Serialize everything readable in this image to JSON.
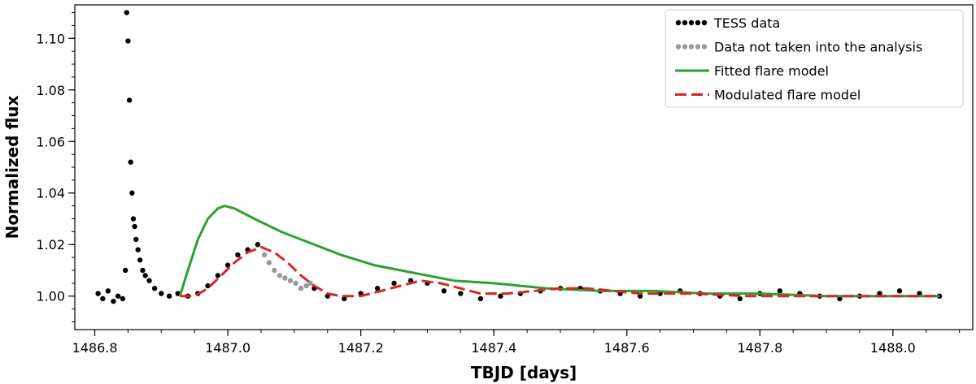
{
  "chart_data": {
    "type": "scatter",
    "title": "",
    "xlabel": "TBJD [days]",
    "ylabel": "Normalized flux",
    "xlim": [
      1486.77,
      1488.12
    ],
    "ylim": [
      0.987,
      1.113
    ],
    "xticks": [
      1486.8,
      1487.0,
      1487.2,
      1487.4,
      1487.6,
      1487.8,
      1488.0
    ],
    "xtick_labels": [
      "1486.8",
      "1487.0",
      "1487.2",
      "1487.4",
      "1487.6",
      "1487.8",
      "1488.0"
    ],
    "yticks": [
      1.0,
      1.02,
      1.04,
      1.06,
      1.08,
      1.1
    ],
    "ytick_labels": [
      "1.00",
      "1.02",
      "1.04",
      "1.06",
      "1.08",
      "1.10"
    ],
    "grid": false,
    "legend_position": "top-right",
    "series": [
      {
        "name": "TESS data",
        "kind": "scatter",
        "color": "#000000",
        "points": [
          [
            1486.805,
            1.001
          ],
          [
            1486.812,
            0.999
          ],
          [
            1486.82,
            1.002
          ],
          [
            1486.828,
            0.998
          ],
          [
            1486.835,
            1.0
          ],
          [
            1486.842,
            0.999
          ],
          [
            1486.846,
            1.01
          ],
          [
            1486.848,
            1.11
          ],
          [
            1486.85,
            1.099
          ],
          [
            1486.852,
            1.076
          ],
          [
            1486.854,
            1.052
          ],
          [
            1486.856,
            1.04
          ],
          [
            1486.858,
            1.03
          ],
          [
            1486.86,
            1.027
          ],
          [
            1486.862,
            1.022
          ],
          [
            1486.865,
            1.018
          ],
          [
            1486.868,
            1.014
          ],
          [
            1486.872,
            1.01
          ],
          [
            1486.876,
            1.008
          ],
          [
            1486.882,
            1.006
          ],
          [
            1486.89,
            1.003
          ],
          [
            1486.9,
            1.001
          ],
          [
            1486.912,
            1.0
          ],
          [
            1486.925,
            1.001
          ],
          [
            1486.94,
            1.0
          ],
          [
            1486.955,
            1.001
          ],
          [
            1486.97,
            1.004
          ],
          [
            1486.985,
            1.008
          ],
          [
            1487.0,
            1.012
          ],
          [
            1487.015,
            1.016
          ],
          [
            1487.03,
            1.018
          ],
          [
            1487.045,
            1.02
          ],
          [
            1487.13,
            1.003
          ],
          [
            1487.15,
            1.0
          ],
          [
            1487.175,
            0.999
          ],
          [
            1487.2,
            1.001
          ],
          [
            1487.225,
            1.003
          ],
          [
            1487.25,
            1.005
          ],
          [
            1487.275,
            1.006
          ],
          [
            1487.3,
            1.005
          ],
          [
            1487.325,
            1.002
          ],
          [
            1487.35,
            1.001
          ],
          [
            1487.38,
            0.999
          ],
          [
            1487.41,
            1.0
          ],
          [
            1487.44,
            1.001
          ],
          [
            1487.47,
            1.002
          ],
          [
            1487.5,
            1.003
          ],
          [
            1487.53,
            1.003
          ],
          [
            1487.56,
            1.002
          ],
          [
            1487.59,
            1.001
          ],
          [
            1487.62,
            1.0
          ],
          [
            1487.65,
            1.001
          ],
          [
            1487.68,
            1.002
          ],
          [
            1487.71,
            1.001
          ],
          [
            1487.74,
            1.0
          ],
          [
            1487.77,
            0.999
          ],
          [
            1487.8,
            1.001
          ],
          [
            1487.83,
            1.002
          ],
          [
            1487.86,
            1.001
          ],
          [
            1487.89,
            1.0
          ],
          [
            1487.92,
            0.999
          ],
          [
            1487.95,
            1.0
          ],
          [
            1487.98,
            1.001
          ],
          [
            1488.01,
            1.002
          ],
          [
            1488.04,
            1.001
          ],
          [
            1488.07,
            1.0
          ]
        ]
      },
      {
        "name": "Data not taken into the analysis",
        "kind": "scatter",
        "color": "#999999",
        "points": [
          [
            1487.055,
            1.016
          ],
          [
            1487.062,
            1.013
          ],
          [
            1487.07,
            1.01
          ],
          [
            1487.078,
            1.008
          ],
          [
            1487.086,
            1.007
          ],
          [
            1487.094,
            1.006
          ],
          [
            1487.102,
            1.005
          ],
          [
            1487.11,
            1.003
          ],
          [
            1487.118,
            1.004
          ],
          [
            1487.124,
            1.005
          ]
        ]
      },
      {
        "name": "Fitted flare model",
        "kind": "line",
        "color": "#2ca02c",
        "points": [
          [
            1486.928,
            1.0
          ],
          [
            1486.94,
            1.01
          ],
          [
            1486.955,
            1.022
          ],
          [
            1486.97,
            1.03
          ],
          [
            1486.985,
            1.034
          ],
          [
            1486.995,
            1.035
          ],
          [
            1487.01,
            1.034
          ],
          [
            1487.04,
            1.03
          ],
          [
            1487.08,
            1.025
          ],
          [
            1487.12,
            1.021
          ],
          [
            1487.17,
            1.016
          ],
          [
            1487.22,
            1.012
          ],
          [
            1487.28,
            1.009
          ],
          [
            1487.34,
            1.006
          ],
          [
            1487.4,
            1.005
          ],
          [
            1487.48,
            1.003
          ],
          [
            1487.56,
            1.002
          ],
          [
            1487.64,
            1.002
          ],
          [
            1487.72,
            1.001
          ],
          [
            1487.8,
            1.001
          ],
          [
            1487.9,
            1.0
          ],
          [
            1488.0,
            1.0
          ],
          [
            1488.07,
            1.0
          ]
        ]
      },
      {
        "name": "Modulated flare model",
        "kind": "dashed-line",
        "color": "#d62728",
        "points": [
          [
            1486.928,
            1.0
          ],
          [
            1486.95,
            1.0
          ],
          [
            1486.97,
            1.003
          ],
          [
            1486.99,
            1.008
          ],
          [
            1487.01,
            1.013
          ],
          [
            1487.03,
            1.017
          ],
          [
            1487.05,
            1.019
          ],
          [
            1487.07,
            1.017
          ],
          [
            1487.09,
            1.013
          ],
          [
            1487.11,
            1.008
          ],
          [
            1487.13,
            1.004
          ],
          [
            1487.15,
            1.001
          ],
          [
            1487.17,
            1.0
          ],
          [
            1487.2,
            1.0
          ],
          [
            1487.23,
            1.002
          ],
          [
            1487.26,
            1.004
          ],
          [
            1487.29,
            1.006
          ],
          [
            1487.32,
            1.005
          ],
          [
            1487.35,
            1.003
          ],
          [
            1487.38,
            1.001
          ],
          [
            1487.42,
            1.001
          ],
          [
            1487.46,
            1.002
          ],
          [
            1487.5,
            1.003
          ],
          [
            1487.54,
            1.003
          ],
          [
            1487.58,
            1.002
          ],
          [
            1487.62,
            1.001
          ],
          [
            1487.7,
            1.001
          ],
          [
            1487.78,
            1.0
          ],
          [
            1487.86,
            1.0
          ],
          [
            1487.94,
            1.0
          ],
          [
            1488.01,
            1.0
          ],
          [
            1488.07,
            1.0
          ]
        ]
      }
    ]
  }
}
